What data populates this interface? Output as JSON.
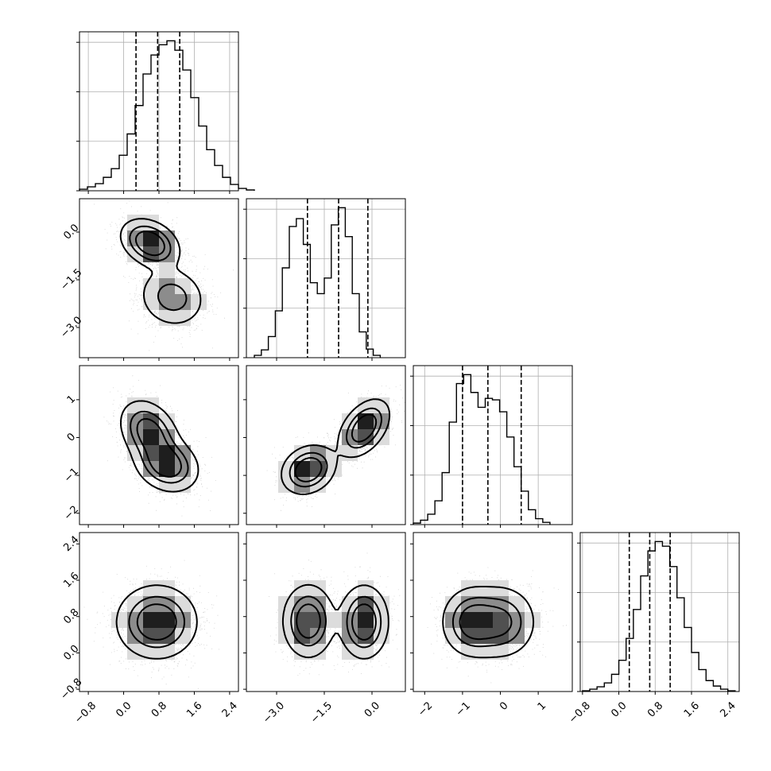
{
  "chart_data": {
    "type": "corner",
    "num_variables": 4,
    "grid": true,
    "quantile_lines": "dashed",
    "variables": [
      {
        "range": [
          -1.0,
          2.6
        ],
        "ticks": [
          -0.8,
          0.0,
          0.8,
          1.6,
          2.4
        ],
        "tick_labels": [
          "−0.8",
          "0.0",
          "0.8",
          "1.6",
          "2.4"
        ],
        "quantiles": [
          0.28,
          0.77,
          1.27
        ],
        "hist": {
          "x0": -1.0,
          "bin_width": 0.18,
          "counts": [
            2,
            5,
            9,
            17,
            28,
            45,
            72,
            108,
            148,
            172,
            185,
            190,
            178,
            153,
            118,
            82,
            52,
            32,
            17,
            8,
            3,
            1
          ]
        }
      },
      {
        "range": [
          -3.95,
          1.05
        ],
        "ticks": [
          -3.0,
          -1.5,
          0.0
        ],
        "tick_labels": [
          "−3.0",
          "−1.5",
          "0.0"
        ],
        "quantiles": [
          -2.03,
          -1.05,
          -0.13
        ],
        "hist": {
          "x0": -3.7,
          "bin_width": 0.22,
          "counts": [
            3,
            10,
            27,
            60,
            115,
            168,
            178,
            145,
            96,
            82,
            102,
            170,
            192,
            155,
            82,
            33,
            11,
            3
          ]
        }
      },
      {
        "range": [
          -2.3,
          1.9
        ],
        "ticks": [
          -2,
          -1,
          0,
          1
        ],
        "tick_labels": [
          "−2",
          "−1",
          "0",
          "1"
        ],
        "quantiles": [
          -1.0,
          -0.33,
          0.55
        ],
        "hist": {
          "x0": -2.3,
          "bin_width": 0.19,
          "counts": [
            2,
            6,
            14,
            32,
            70,
            138,
            190,
            202,
            178,
            158,
            170,
            168,
            152,
            118,
            78,
            45,
            20,
            8,
            3
          ]
        }
      },
      {
        "range": [
          -0.85,
          2.65
        ],
        "ticks": [
          -0.8,
          0.0,
          0.8,
          1.6,
          2.4
        ],
        "tick_labels": [
          "−0.8",
          "0.0",
          "0.8",
          "1.6",
          "2.4"
        ],
        "quantiles": [
          0.23,
          0.68,
          1.13
        ],
        "hist": {
          "x0": -0.8,
          "bin_width": 0.16,
          "counts": [
            1,
            3,
            6,
            11,
            22,
            40,
            68,
            105,
            148,
            180,
            192,
            186,
            160,
            120,
            82,
            50,
            28,
            14,
            7,
            3,
            1
          ]
        }
      }
    ],
    "pair_components": {
      "1,0": [
        {
          "mx": 0.6,
          "my": -0.35,
          "sx": 0.33,
          "sy": 0.38,
          "rho": -0.3,
          "w": 0.55
        },
        {
          "mx": 1.1,
          "my": -2.05,
          "sx": 0.38,
          "sy": 0.48,
          "rho": -0.1,
          "w": 0.45
        }
      ],
      "2,0": [
        {
          "mx": 0.58,
          "my": 0.15,
          "sx": 0.33,
          "sy": 0.42,
          "rho": -0.3,
          "w": 0.5
        },
        {
          "mx": 0.98,
          "my": -0.72,
          "sx": 0.36,
          "sy": 0.36,
          "rho": -0.2,
          "w": 0.5
        }
      ],
      "2,1": [
        {
          "mx": -0.25,
          "my": 0.25,
          "sx": 0.4,
          "sy": 0.38,
          "rho": 0.45,
          "w": 0.5
        },
        {
          "mx": -2.0,
          "my": -0.85,
          "sx": 0.42,
          "sy": 0.32,
          "rho": 0.2,
          "w": 0.5
        }
      ],
      "3,0": [
        {
          "mx": 0.75,
          "my": 0.68,
          "sx": 0.45,
          "sy": 0.4,
          "rho": 0.0,
          "w": 1.0
        }
      ],
      "3,1": [
        {
          "mx": -0.25,
          "my": 0.68,
          "sx": 0.38,
          "sy": 0.4,
          "rho": 0.0,
          "w": 0.5
        },
        {
          "mx": -2.0,
          "my": 0.7,
          "sx": 0.4,
          "sy": 0.4,
          "rho": 0.0,
          "w": 0.5
        }
      ],
      "3,2": [
        {
          "mx": -0.75,
          "my": 0.68,
          "sx": 0.4,
          "sy": 0.38,
          "rho": 0.0,
          "w": 0.5
        },
        {
          "mx": 0.05,
          "my": 0.68,
          "sx": 0.45,
          "sy": 0.4,
          "rho": 0.0,
          "w": 0.5
        }
      ]
    }
  }
}
